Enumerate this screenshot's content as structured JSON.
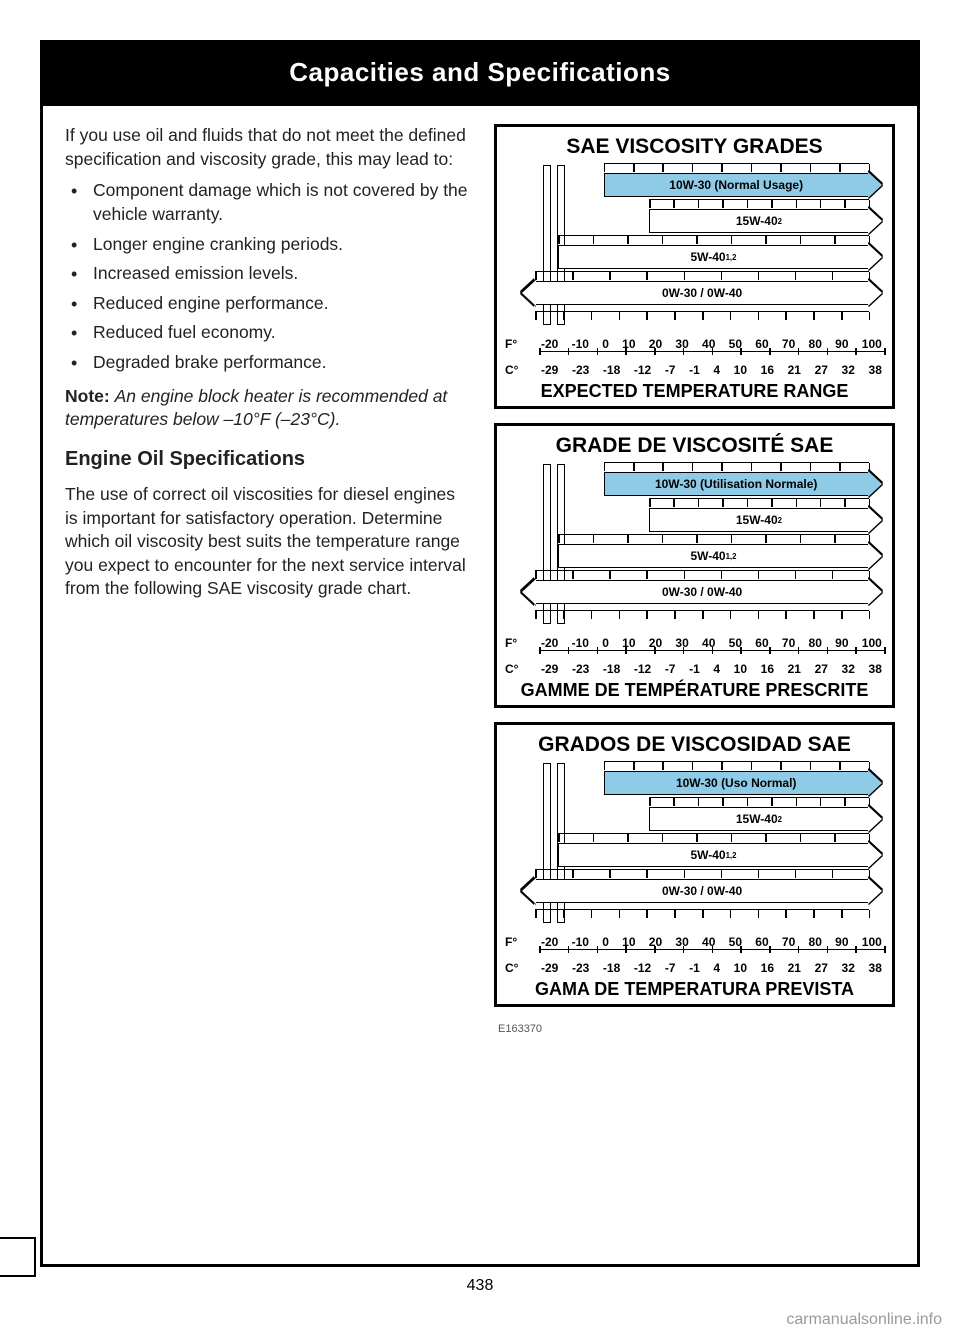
{
  "header": {
    "title": "Capacities and Specifications"
  },
  "left": {
    "intro": "If you use oil and fluids that do not meet the defined specification and viscosity grade, this may lead to:",
    "bullets": [
      "Component damage which is not covered by the vehicle warranty.",
      "Longer engine cranking periods.",
      "Increased emission levels.",
      "Reduced engine performance.",
      "Reduced fuel economy.",
      "Degraded brake performance."
    ],
    "note_label": "Note:",
    "note_body": "An engine block heater is recommended at temperatures below –10°F (–23°C).",
    "sub_head": "Engine Oil Specifications",
    "spec_para": "The use of correct oil viscosities for diesel engines is important for satisfactory operation. Determine which oil viscosity best suits the temperature range you expect to encounter for the next service interval from the following SAE viscosity grade chart."
  },
  "charts": [
    {
      "title": "SAE VISCOSITY GRADES",
      "footer": "EXPECTED TEMPERATURE RANGE",
      "bands": [
        {
          "label": "10W-30 (Normal Usage)",
          "left_pct": 26,
          "right_pct": 96,
          "blue": true,
          "arrow_l": false,
          "arrow_r": true,
          "sup": ""
        },
        {
          "label": "15W-40",
          "left_pct": 38,
          "right_pct": 96,
          "blue": false,
          "arrow_l": false,
          "arrow_r": true,
          "sup": "2"
        },
        {
          "label": "5W-40",
          "left_pct": 14,
          "right_pct": 96,
          "blue": false,
          "arrow_l": false,
          "arrow_r": true,
          "sup": "1,2"
        },
        {
          "label": "0W-30 / 0W-40",
          "left_pct": 8,
          "right_pct": 96,
          "blue": false,
          "arrow_l": true,
          "arrow_r": true,
          "sup": ""
        }
      ]
    },
    {
      "title": "GRADE DE VISCOSITÉ SAE",
      "footer": "GAMME DE TEMPÉRATURE PRESCRITE",
      "bands": [
        {
          "label": "10W-30 (Utilisation Normale)",
          "left_pct": 26,
          "right_pct": 96,
          "blue": true,
          "arrow_l": false,
          "arrow_r": true,
          "sup": ""
        },
        {
          "label": "15W-40",
          "left_pct": 38,
          "right_pct": 96,
          "blue": false,
          "arrow_l": false,
          "arrow_r": true,
          "sup": "2"
        },
        {
          "label": "5W-40",
          "left_pct": 14,
          "right_pct": 96,
          "blue": false,
          "arrow_l": false,
          "arrow_r": true,
          "sup": "1,2"
        },
        {
          "label": "0W-30 / 0W-40",
          "left_pct": 8,
          "right_pct": 96,
          "blue": false,
          "arrow_l": true,
          "arrow_r": true,
          "sup": ""
        }
      ]
    },
    {
      "title": "GRADOS DE VISCOSIDAD SAE",
      "footer": "GAMA DE TEMPERATURA PREVISTA",
      "bands": [
        {
          "label": "10W-30 (Uso Normal)",
          "left_pct": 26,
          "right_pct": 96,
          "blue": true,
          "arrow_l": false,
          "arrow_r": true,
          "sup": ""
        },
        {
          "label": "15W-40",
          "left_pct": 38,
          "right_pct": 96,
          "blue": false,
          "arrow_l": false,
          "arrow_r": true,
          "sup": "2"
        },
        {
          "label": "5W-40",
          "left_pct": 14,
          "right_pct": 96,
          "blue": false,
          "arrow_l": false,
          "arrow_r": true,
          "sup": "1,2"
        },
        {
          "label": "0W-30 / 0W-40",
          "left_pct": 8,
          "right_pct": 96,
          "blue": false,
          "arrow_l": true,
          "arrow_r": true,
          "sup": ""
        }
      ]
    }
  ],
  "axis": {
    "f_label": "F°",
    "c_label": "C°",
    "f_values": [
      "-20",
      "-10",
      "0",
      "10",
      "20",
      "30",
      "40",
      "50",
      "60",
      "70",
      "80",
      "90",
      "100"
    ],
    "c_values": [
      "-29",
      "-23",
      "-18",
      "-12",
      "-7",
      "-1",
      "4",
      "10",
      "16",
      "21",
      "27",
      "32",
      "38"
    ]
  },
  "chart_code": "E163370",
  "page_number": "438",
  "watermark": "carmanualsonline.info",
  "colors": {
    "band_blue": "#8fcbe6",
    "border": "#000000",
    "text": "#222222",
    "watermark": "#9a9a9a"
  }
}
